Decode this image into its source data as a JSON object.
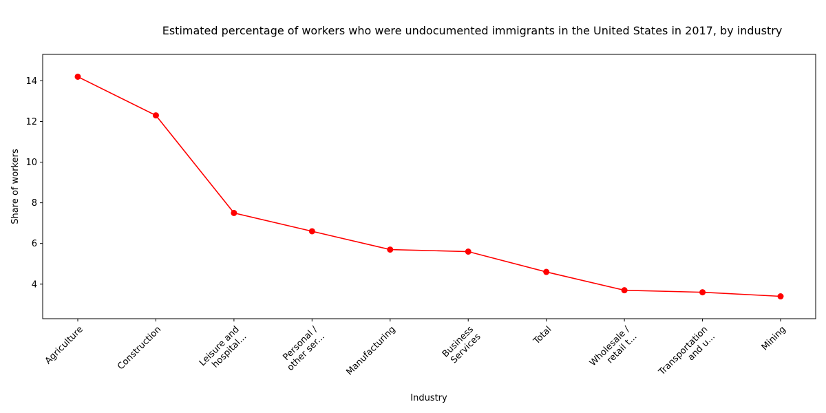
{
  "chart_data": {
    "type": "line",
    "title": "Estimated percentage of workers who were undocumented immigrants in the United States in 2017, by industry",
    "xlabel": "Industry",
    "ylabel": "Share of workers",
    "categories": [
      [
        "Agriculture"
      ],
      [
        "Construction"
      ],
      [
        "Leisure and",
        "hospital..."
      ],
      [
        "Personal /",
        "other ser..."
      ],
      [
        "Manufacturing"
      ],
      [
        "Business",
        "Services"
      ],
      [
        "Total"
      ],
      [
        "Wholesale /",
        "retail t..."
      ],
      [
        "Transportation",
        "and u..."
      ],
      [
        "Mining"
      ]
    ],
    "series": [
      {
        "values": [
          14.2,
          12.3,
          7.5,
          6.6,
          5.7,
          5.6,
          4.6,
          3.7,
          3.6,
          3.4
        ]
      }
    ],
    "ylim": [
      2.3,
      15.3
    ],
    "yticks": [
      4,
      6,
      8,
      10,
      12,
      14
    ],
    "grid": false,
    "color": "#ff0000"
  }
}
